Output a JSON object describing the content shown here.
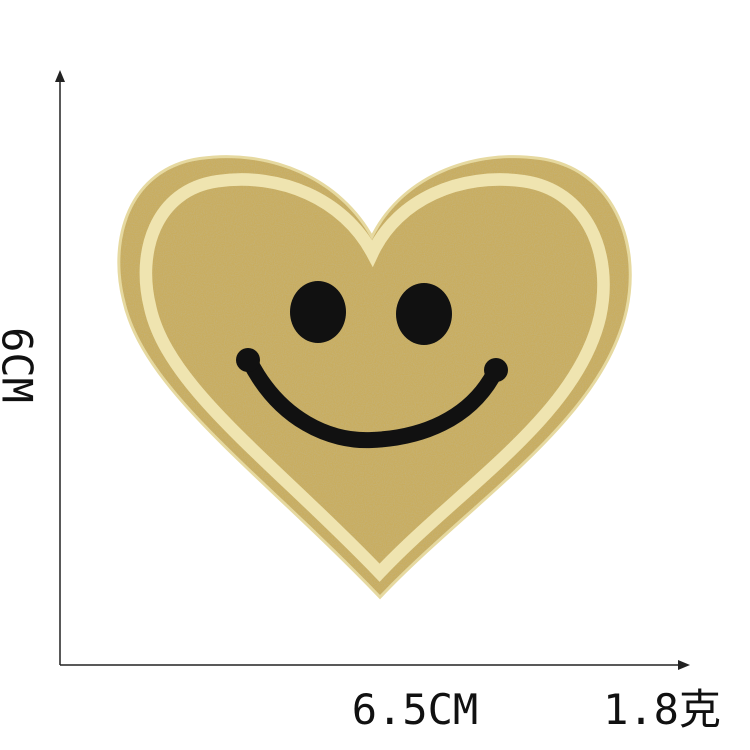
{
  "dimensions": {
    "height": "6CM",
    "width": "6.5CM",
    "weight": "1.8克"
  }
}
